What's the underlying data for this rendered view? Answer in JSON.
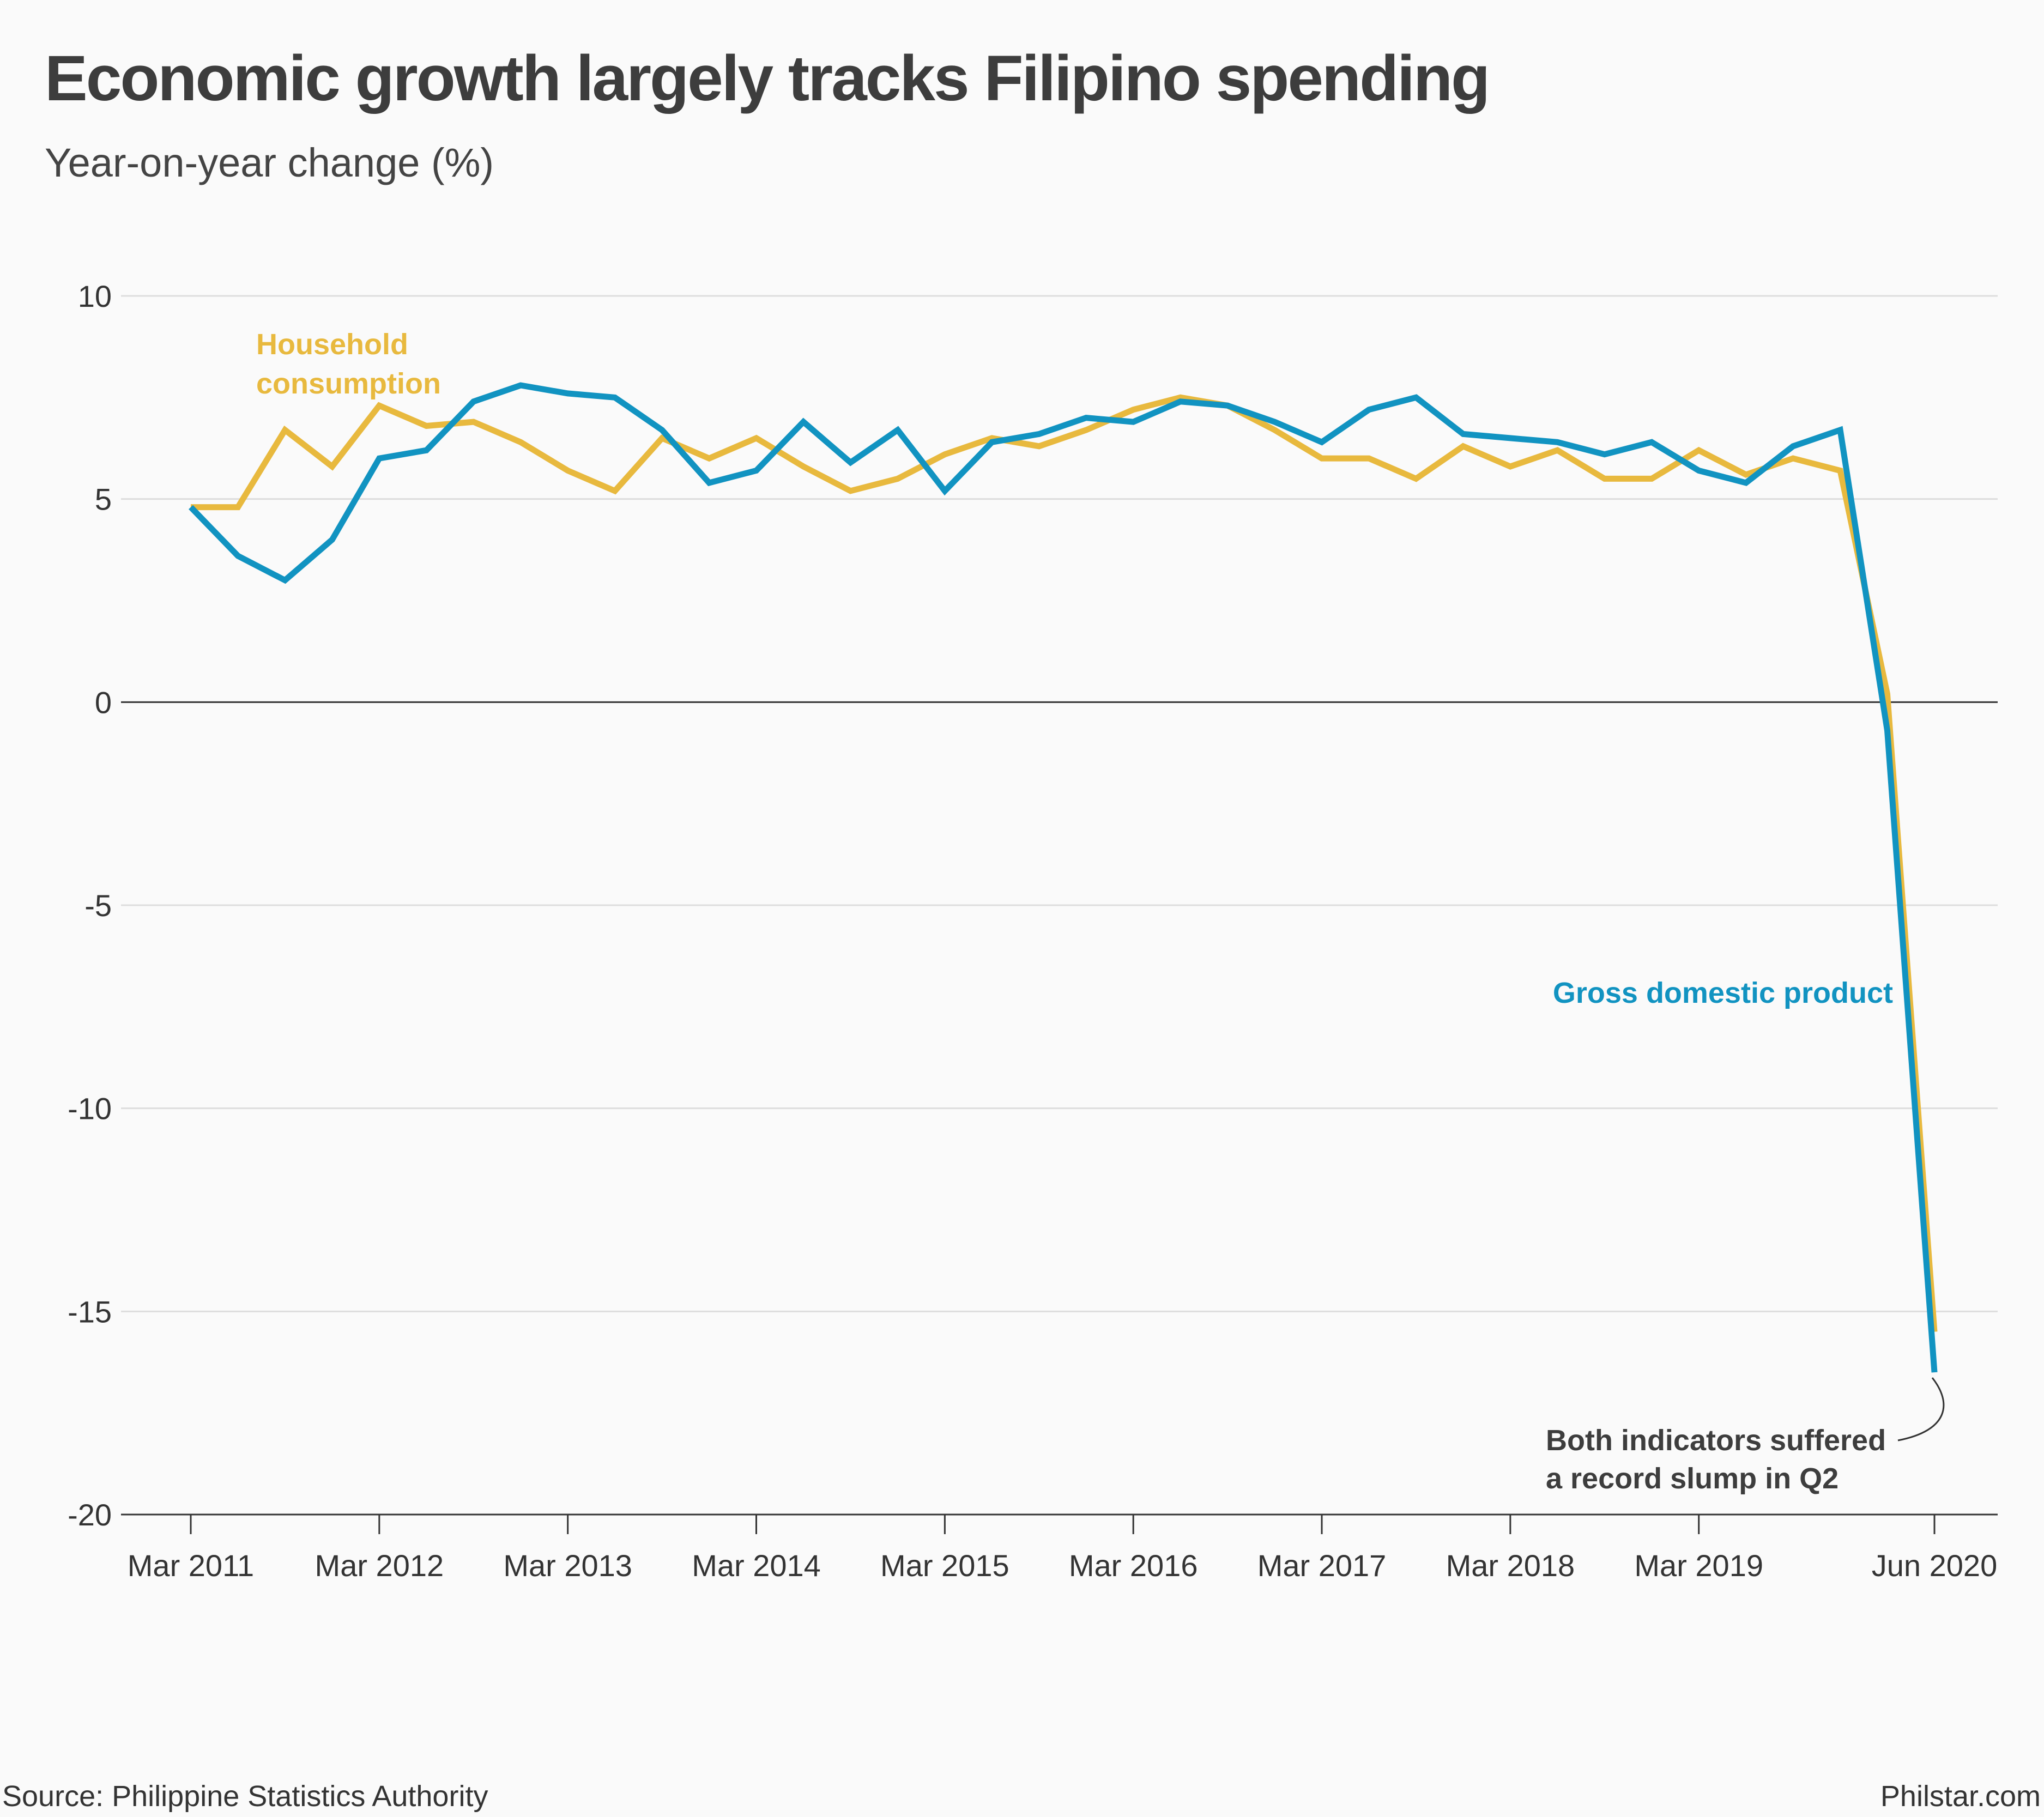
{
  "title": "Economic growth largely tracks Filipino spending",
  "subtitle": "Year-on-year change (%)",
  "source": "Source: Philippine Statistics Authority",
  "credit": "Philstar.com",
  "annotation": [
    "Both indicators suffered",
    "a record slump in Q2"
  ],
  "colors": {
    "household": "#e8b93e",
    "gdp": "#1193c1",
    "zero_line": "#333333",
    "grid": "#dddddd"
  },
  "chart_data": {
    "type": "line",
    "title": "Economic growth largely tracks Filipino spending",
    "ylabel": "Year-on-year change (%)",
    "xlabel": "",
    "ylim": [
      -20,
      10
    ],
    "yticks": [
      "10",
      "5",
      "0",
      "-5",
      "-10",
      "-15",
      "-20"
    ],
    "grid": true,
    "x": [
      "Mar 2011",
      "Jun 2011",
      "Sep 2011",
      "Dec 2011",
      "Mar 2012",
      "Jun 2012",
      "Sep 2012",
      "Dec 2012",
      "Mar 2013",
      "Jun 2013",
      "Sep 2013",
      "Dec 2013",
      "Mar 2014",
      "Jun 2014",
      "Sep 2014",
      "Dec 2014",
      "Mar 2015",
      "Jun 2015",
      "Sep 2015",
      "Dec 2015",
      "Mar 2016",
      "Jun 2016",
      "Sep 2016",
      "Dec 2016",
      "Mar 2017",
      "Jun 2017",
      "Sep 2017",
      "Dec 2017",
      "Mar 2018",
      "Jun 2018",
      "Sep 2018",
      "Dec 2018",
      "Mar 2019",
      "Jun 2019",
      "Sep 2019",
      "Dec 2019",
      "Mar 2020",
      "Jun 2020"
    ],
    "xticks": [
      {
        "index": 0,
        "label": "Mar 2011"
      },
      {
        "index": 4,
        "label": "Mar 2012"
      },
      {
        "index": 8,
        "label": "Mar 2013"
      },
      {
        "index": 12,
        "label": "Mar 2014"
      },
      {
        "index": 16,
        "label": "Mar 2015"
      },
      {
        "index": 20,
        "label": "Mar 2016"
      },
      {
        "index": 24,
        "label": "Mar 2017"
      },
      {
        "index": 28,
        "label": "Mar 2018"
      },
      {
        "index": 32,
        "label": "Mar 2019"
      },
      {
        "index": 37,
        "label": "Jun 2020"
      }
    ],
    "series": [
      {
        "name": "Household consumption",
        "label_lines": [
          "Household",
          "consumption"
        ],
        "color": "#e8b93e",
        "values": [
          4.8,
          4.8,
          6.7,
          5.8,
          7.3,
          6.8,
          6.9,
          6.4,
          5.7,
          5.2,
          6.5,
          6.0,
          6.5,
          5.8,
          5.2,
          5.5,
          6.1,
          6.5,
          6.3,
          6.7,
          7.2,
          7.5,
          7.3,
          6.7,
          6.0,
          6.0,
          5.5,
          6.3,
          5.8,
          6.2,
          5.5,
          5.5,
          6.2,
          5.6,
          6.0,
          5.7,
          0.2,
          -15.5
        ]
      },
      {
        "name": "Gross domestic product",
        "label_lines": [
          "Gross domestic product"
        ],
        "color": "#1193c1",
        "values": [
          4.8,
          3.6,
          3.0,
          4.0,
          6.0,
          6.2,
          7.4,
          7.8,
          7.6,
          7.5,
          6.7,
          5.4,
          5.7,
          6.9,
          5.9,
          6.7,
          5.2,
          6.4,
          6.6,
          7.0,
          6.9,
          7.4,
          7.3,
          6.9,
          6.4,
          7.2,
          7.5,
          6.6,
          6.5,
          6.4,
          6.1,
          6.4,
          5.7,
          5.4,
          6.3,
          6.7,
          -0.7,
          -16.5
        ]
      }
    ]
  }
}
